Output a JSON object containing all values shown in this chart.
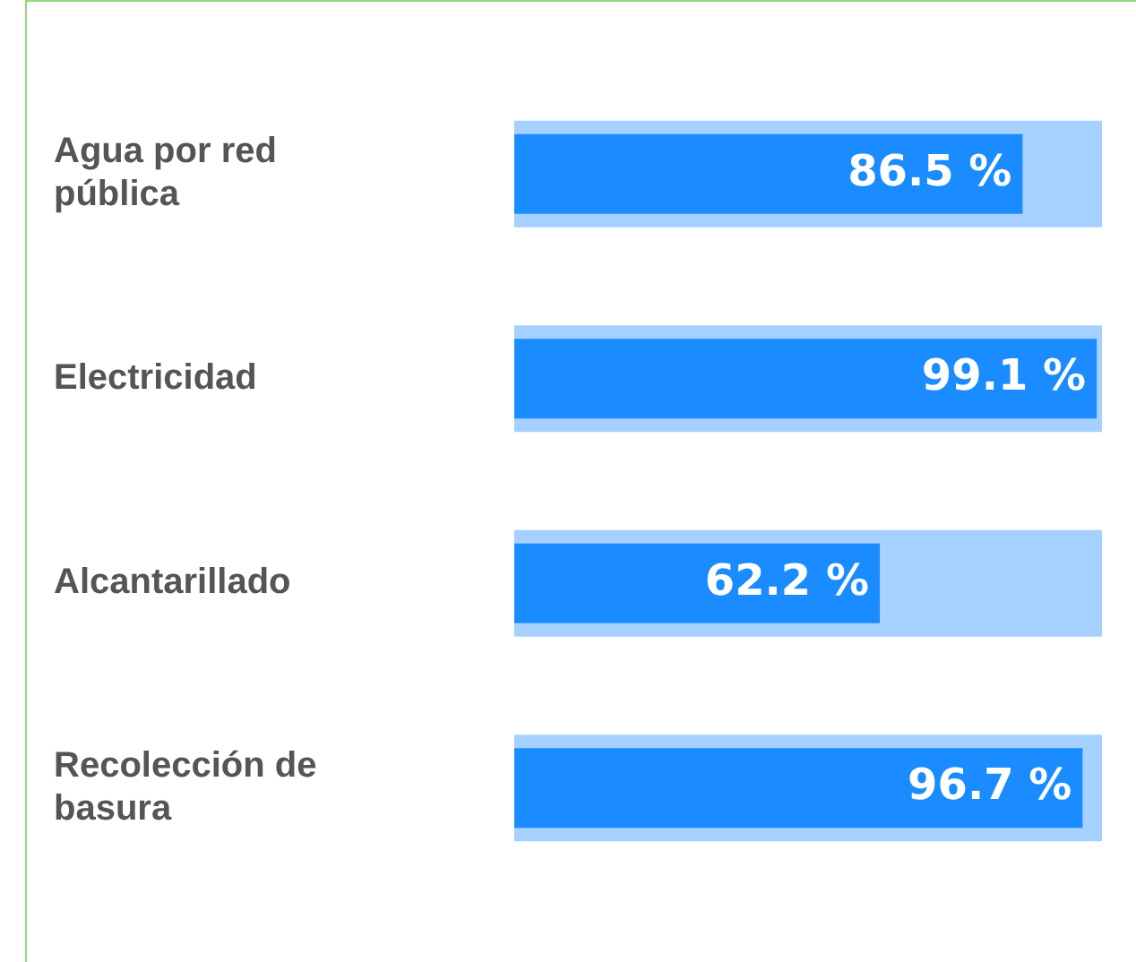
{
  "chart_data": {
    "type": "bar",
    "orientation": "horizontal",
    "categories": [
      "Agua por red pública",
      "Electricidad",
      "Alcantarillado",
      "Recolección de basura"
    ],
    "xlim": [
      0,
      100
    ],
    "tick_labels": "y",
    "legend": false,
    "series": [
      {
        "color": "#a6d0ff",
        "values": [
          100,
          100,
          100,
          100
        ]
      },
      {
        "color": "#1a8cff",
        "values": [
          86.5,
          99.1,
          62.2,
          96.7
        ],
        "value_labels": [
          "86.5 %",
          "99.1 %",
          "62.2 %",
          "96.7 %"
        ]
      }
    ]
  }
}
